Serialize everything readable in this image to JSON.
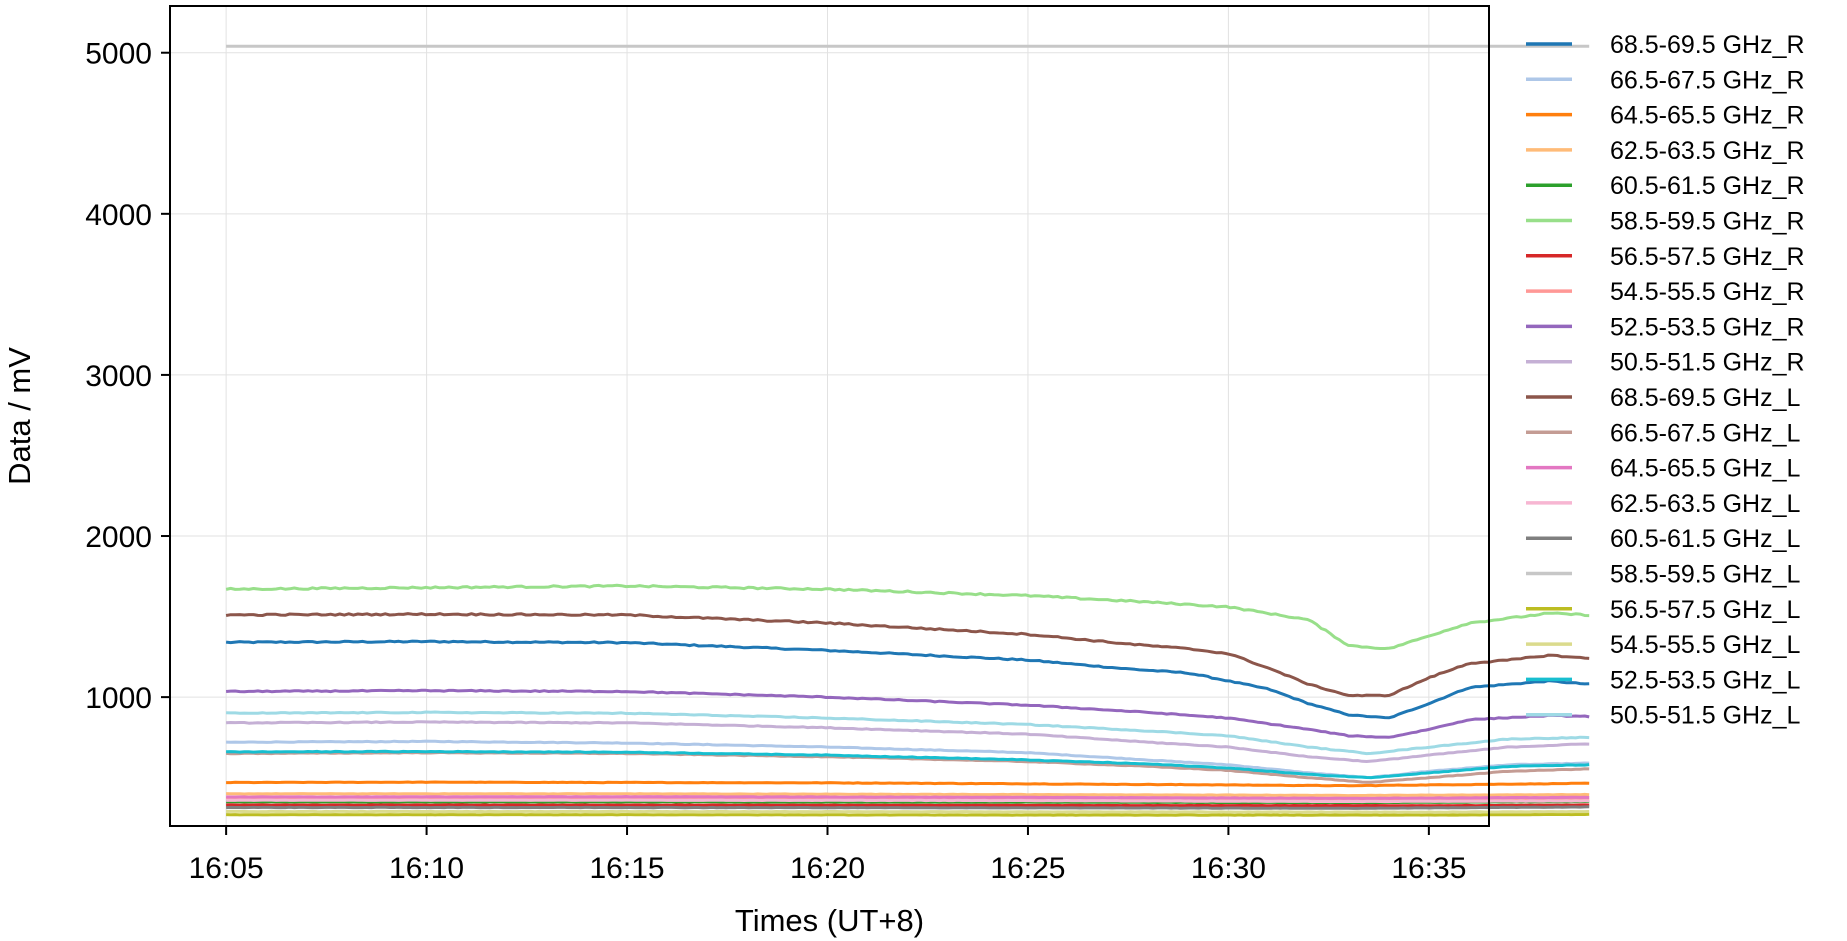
{
  "chart_data": {
    "type": "line",
    "title": "",
    "xlabel": "Times (UT+8)",
    "ylabel": "Data / mV",
    "x_ticks": [
      "16:05",
      "16:10",
      "16:15",
      "16:20",
      "16:25",
      "16:30",
      "16:35"
    ],
    "x_range_minutes": [
      -1.4,
      31.5
    ],
    "y_ticks": [
      1000,
      2000,
      3000,
      4000,
      5000
    ],
    "ylim": [
      200,
      5290
    ],
    "grid": true,
    "legend_position": "outside-right",
    "series": [
      {
        "name": "68.5-69.5 GHz_R",
        "color": "#1f77b4",
        "values": [
          [
            0,
            1340
          ],
          [
            5,
            1345
          ],
          [
            10,
            1338
          ],
          [
            15,
            1290
          ],
          [
            20,
            1230
          ],
          [
            22.5,
            1175
          ],
          [
            24,
            1150
          ],
          [
            25,
            1100
          ],
          [
            26,
            1050
          ],
          [
            27,
            960
          ],
          [
            28,
            890
          ],
          [
            29,
            870
          ],
          [
            30,
            960
          ],
          [
            31,
            1060
          ],
          [
            32,
            1080
          ],
          [
            33,
            1100
          ],
          [
            34,
            1080
          ]
        ]
      },
      {
        "name": "66.5-67.5 GHz_R",
        "color": "#aec7e8",
        "values": [
          [
            0,
            720
          ],
          [
            5,
            725
          ],
          [
            10,
            715
          ],
          [
            15,
            690
          ],
          [
            20,
            655
          ],
          [
            23,
            610
          ],
          [
            25,
            580
          ],
          [
            27,
            530
          ],
          [
            28.5,
            500
          ],
          [
            30,
            540
          ],
          [
            32,
            580
          ],
          [
            34,
            590
          ]
        ]
      },
      {
        "name": "64.5-65.5 GHz_R",
        "color": "#ff7f0e",
        "values": [
          [
            0,
            470
          ],
          [
            5,
            472
          ],
          [
            10,
            470
          ],
          [
            15,
            468
          ],
          [
            20,
            462
          ],
          [
            25,
            455
          ],
          [
            28,
            450
          ],
          [
            30,
            455
          ],
          [
            34,
            465
          ]
        ]
      },
      {
        "name": "62.5-63.5 GHz_R",
        "color": "#ffbb78",
        "values": [
          [
            0,
            400
          ],
          [
            10,
            400
          ],
          [
            20,
            395
          ],
          [
            28,
            390
          ],
          [
            34,
            395
          ]
        ]
      },
      {
        "name": "60.5-61.5 GHz_R",
        "color": "#2ca02c",
        "values": [
          [
            0,
            350
          ],
          [
            10,
            350
          ],
          [
            20,
            348
          ],
          [
            28,
            345
          ],
          [
            34,
            352
          ]
        ]
      },
      {
        "name": "58.5-59.5 GHz_R",
        "color": "#98df8a",
        "values": [
          [
            0,
            1670
          ],
          [
            5,
            1680
          ],
          [
            10,
            1690
          ],
          [
            15,
            1670
          ],
          [
            20,
            1630
          ],
          [
            23,
            1590
          ],
          [
            25,
            1560
          ],
          [
            27,
            1480
          ],
          [
            28,
            1320
          ],
          [
            29,
            1300
          ],
          [
            30,
            1380
          ],
          [
            31,
            1460
          ],
          [
            32,
            1490
          ],
          [
            33,
            1520
          ],
          [
            34,
            1510
          ]
        ]
      },
      {
        "name": "56.5-57.5 GHz_R",
        "color": "#d62728",
        "values": [
          [
            0,
            330
          ],
          [
            10,
            330
          ],
          [
            20,
            328
          ],
          [
            30,
            326
          ],
          [
            34,
            330
          ]
        ]
      },
      {
        "name": "54.5-55.5 GHz_R",
        "color": "#ff9896",
        "values": [
          [
            0,
            370
          ],
          [
            10,
            372
          ],
          [
            20,
            368
          ],
          [
            28,
            362
          ],
          [
            34,
            368
          ]
        ]
      },
      {
        "name": "52.5-53.5 GHz_R",
        "color": "#9467bd",
        "values": [
          [
            0,
            1035
          ],
          [
            5,
            1040
          ],
          [
            10,
            1035
          ],
          [
            15,
            1000
          ],
          [
            20,
            950
          ],
          [
            23,
            905
          ],
          [
            25,
            870
          ],
          [
            27,
            800
          ],
          [
            28,
            760
          ],
          [
            29,
            750
          ],
          [
            30,
            800
          ],
          [
            31,
            860
          ],
          [
            33,
            885
          ],
          [
            34,
            880
          ]
        ]
      },
      {
        "name": "50.5-51.5 GHz_R",
        "color": "#c5b0d5",
        "values": [
          [
            0,
            840
          ],
          [
            5,
            845
          ],
          [
            10,
            840
          ],
          [
            15,
            810
          ],
          [
            20,
            770
          ],
          [
            23,
            720
          ],
          [
            25,
            690
          ],
          [
            27,
            630
          ],
          [
            28.5,
            600
          ],
          [
            30,
            640
          ],
          [
            32,
            690
          ],
          [
            34,
            710
          ]
        ]
      },
      {
        "name": "68.5-69.5 GHz_L",
        "color": "#8c564b",
        "values": [
          [
            0,
            1510
          ],
          [
            5,
            1515
          ],
          [
            10,
            1510
          ],
          [
            15,
            1460
          ],
          [
            20,
            1390
          ],
          [
            22.5,
            1330
          ],
          [
            24,
            1300
          ],
          [
            25,
            1270
          ],
          [
            26,
            1180
          ],
          [
            27,
            1080
          ],
          [
            28,
            1010
          ],
          [
            29,
            1010
          ],
          [
            30,
            1120
          ],
          [
            31,
            1210
          ],
          [
            32,
            1230
          ],
          [
            33,
            1260
          ],
          [
            34,
            1240
          ]
        ]
      },
      {
        "name": "66.5-67.5 GHz_L",
        "color": "#c49c94",
        "values": [
          [
            0,
            650
          ],
          [
            5,
            655
          ],
          [
            10,
            650
          ],
          [
            15,
            630
          ],
          [
            20,
            600
          ],
          [
            23,
            570
          ],
          [
            25,
            545
          ],
          [
            27,
            500
          ],
          [
            28.5,
            470
          ],
          [
            30,
            500
          ],
          [
            32,
            540
          ],
          [
            34,
            555
          ]
        ]
      },
      {
        "name": "64.5-65.5 GHz_L",
        "color": "#e377c2",
        "values": [
          [
            0,
            380
          ],
          [
            10,
            382
          ],
          [
            20,
            378
          ],
          [
            28,
            372
          ],
          [
            34,
            378
          ]
        ]
      },
      {
        "name": "62.5-63.5 GHz_L",
        "color": "#f7b6d2",
        "values": [
          [
            0,
            360
          ],
          [
            10,
            360
          ],
          [
            20,
            358
          ],
          [
            28,
            352
          ],
          [
            34,
            356
          ]
        ]
      },
      {
        "name": "60.5-61.5 GHz_L",
        "color": "#7f7f7f",
        "values": [
          [
            0,
            315
          ],
          [
            10,
            315
          ],
          [
            20,
            313
          ],
          [
            28,
            310
          ],
          [
            34,
            318
          ]
        ]
      },
      {
        "name": "58.5-59.5 GHz_L",
        "color": "#c7c7c7",
        "values": [
          [
            0,
            5040
          ],
          [
            10,
            5040
          ],
          [
            20,
            5040
          ],
          [
            30,
            5040
          ],
          [
            34,
            5040
          ]
        ]
      },
      {
        "name": "56.5-57.5 GHz_L",
        "color": "#bcbd22",
        "values": [
          [
            0,
            270
          ],
          [
            10,
            270
          ],
          [
            20,
            268
          ],
          [
            30,
            268
          ],
          [
            34,
            272
          ]
        ]
      },
      {
        "name": "54.5-55.5 GHz_L",
        "color": "#dbdb8d",
        "values": [
          [
            0,
            290
          ],
          [
            10,
            290
          ],
          [
            20,
            288
          ],
          [
            30,
            286
          ],
          [
            34,
            290
          ]
        ]
      },
      {
        "name": "52.5-53.5 GHz_L",
        "color": "#17becf",
        "values": [
          [
            0,
            660
          ],
          [
            5,
            662
          ],
          [
            10,
            658
          ],
          [
            15,
            640
          ],
          [
            20,
            610
          ],
          [
            23,
            585
          ],
          [
            25,
            560
          ],
          [
            27,
            520
          ],
          [
            28.5,
            500
          ],
          [
            30,
            530
          ],
          [
            32,
            570
          ],
          [
            34,
            580
          ]
        ]
      },
      {
        "name": "50.5-51.5 GHz_L",
        "color": "#9edae5",
        "values": [
          [
            0,
            900
          ],
          [
            5,
            905
          ],
          [
            10,
            900
          ],
          [
            15,
            870
          ],
          [
            20,
            830
          ],
          [
            23,
            790
          ],
          [
            25,
            760
          ],
          [
            27,
            690
          ],
          [
            28.5,
            650
          ],
          [
            30,
            690
          ],
          [
            32,
            740
          ],
          [
            34,
            750
          ]
        ]
      }
    ]
  }
}
